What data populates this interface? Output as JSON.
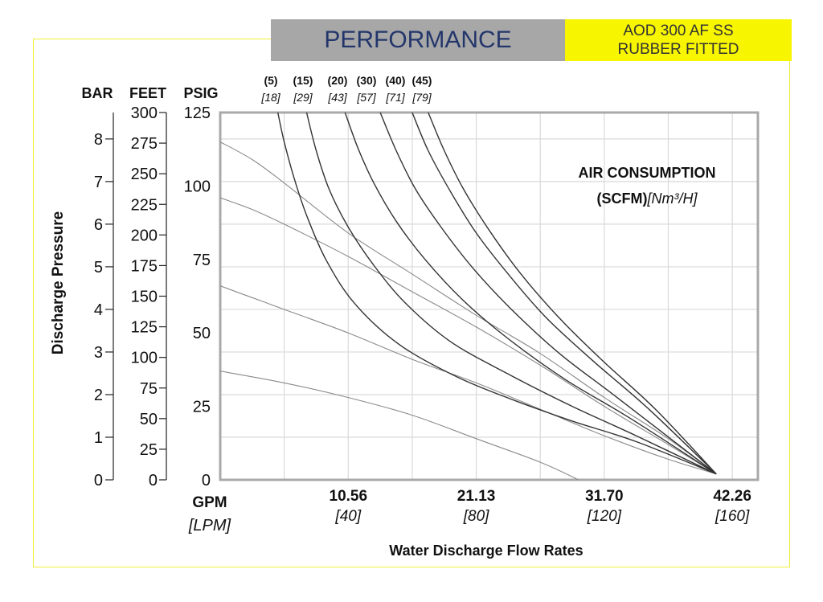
{
  "header": {
    "title": "PERFORMANCE",
    "model_line1": "AOD 300 AF SS",
    "model_line2": "RUBBER FITTED"
  },
  "colors": {
    "title_bg": "#a7a7a7",
    "title_text": "#23366b",
    "model_bg": "#f7f500",
    "frame": "#f0ec3a",
    "plot_border": "#a9a9a9"
  },
  "chart_data": {
    "type": "line",
    "title": "PERFORMANCE",
    "subtitle": "AOD 300 AF SS RUBBER FITTED",
    "xlabel": "Water Discharge Flow Rates",
    "x_unit_primary": "GPM",
    "x_unit_secondary": "[LPM]",
    "xlim": [
      0,
      168
    ],
    "x_ticks": [
      {
        "value": 40,
        "primary": "10.56",
        "secondary": "[40]"
      },
      {
        "value": 80,
        "primary": "21.13",
        "secondary": "[80]"
      },
      {
        "value": 120,
        "primary": "31.70",
        "secondary": "[120]"
      },
      {
        "value": 160,
        "primary": "42.26",
        "secondary": "[160]"
      }
    ],
    "ylabel": "Discharge Pressure",
    "ylim": [
      0,
      125
    ],
    "y_axes": [
      {
        "unit": "BAR",
        "max": 8.62,
        "ticks": [
          "0",
          "1",
          "2",
          "3",
          "4",
          "5",
          "6",
          "7",
          "8"
        ]
      },
      {
        "unit": "FEET",
        "max": 300,
        "ticks": [
          "0",
          "25",
          "50",
          "75",
          "100",
          "125",
          "150",
          "175",
          "200",
          "225",
          "250",
          "275",
          "300"
        ]
      },
      {
        "unit": "PSIG",
        "max": 125,
        "ticks": [
          "0",
          "25",
          "50",
          "75",
          "100",
          "125"
        ]
      }
    ],
    "grid": true,
    "annotation": {
      "line1": "AIR CONSUMPTION",
      "line2_bold": "(SCFM)",
      "line2_italic": "[Nm³/H]"
    },
    "air_curves": [
      {
        "scfm": "(5)",
        "nm3h": "[18]",
        "x": [
          18,
          20,
          23,
          27,
          33,
          42,
          56,
          74,
          92,
          110,
          130,
          155
        ],
        "y": [
          125,
          115,
          103,
          90,
          75,
          60,
          46,
          35,
          27,
          20,
          13,
          2
        ]
      },
      {
        "scfm": "(15)",
        "nm3h": "[29]",
        "x": [
          27,
          30,
          34,
          40,
          48,
          58,
          72,
          90,
          110,
          130,
          155
        ],
        "y": [
          125,
          112,
          99,
          86,
          73,
          60,
          47,
          36,
          25,
          15,
          2
        ]
      },
      {
        "scfm": "(20)",
        "nm3h": "[43]",
        "x": [
          39,
          43,
          48,
          55,
          64,
          76,
          90,
          108,
          128,
          155
        ],
        "y": [
          125,
          113,
          101,
          88,
          75,
          61,
          48,
          34,
          21,
          2
        ]
      },
      {
        "scfm": "(30)",
        "nm3h": "[57]",
        "x": [
          50,
          55,
          61,
          69,
          79,
          91,
          106,
          124,
          155
        ],
        "y": [
          125,
          112,
          99,
          86,
          72,
          58,
          43,
          28,
          2
        ]
      },
      {
        "scfm": "(40)",
        "nm3h": "[71]",
        "x": [
          60,
          65,
          72,
          80,
          90,
          102,
          117,
          134,
          155
        ],
        "y": [
          125,
          112,
          98,
          84,
          70,
          55,
          40,
          24,
          2
        ]
      },
      {
        "scfm": "(45)",
        "nm3h": "[79]",
        "x": [
          65,
          70,
          76,
          84,
          94,
          106,
          120,
          136,
          155
        ],
        "y": [
          125,
          112,
          99,
          85,
          70,
          55,
          40,
          24,
          2
        ]
      }
    ],
    "head_curves": [
      {
        "x": [
          0,
          10,
          20,
          40,
          60,
          80,
          100,
          120,
          140,
          155
        ],
        "y": [
          115,
          109,
          101,
          84,
          70,
          56,
          43,
          28,
          14,
          2
        ]
      },
      {
        "x": [
          0,
          10,
          20,
          40,
          60,
          80,
          100,
          120,
          140,
          155
        ],
        "y": [
          96,
          92,
          87,
          76,
          64,
          52,
          39,
          25,
          12,
          2
        ]
      },
      {
        "x": [
          0,
          10,
          20,
          40,
          60,
          80,
          100,
          120,
          140,
          155
        ],
        "y": [
          66,
          62,
          58,
          50,
          41,
          33,
          24,
          15,
          7,
          2
        ]
      },
      {
        "x": [
          0,
          20,
          40,
          60,
          80,
          100,
          112
        ],
        "y": [
          37,
          33,
          28,
          22,
          14,
          6,
          0
        ]
      }
    ]
  }
}
